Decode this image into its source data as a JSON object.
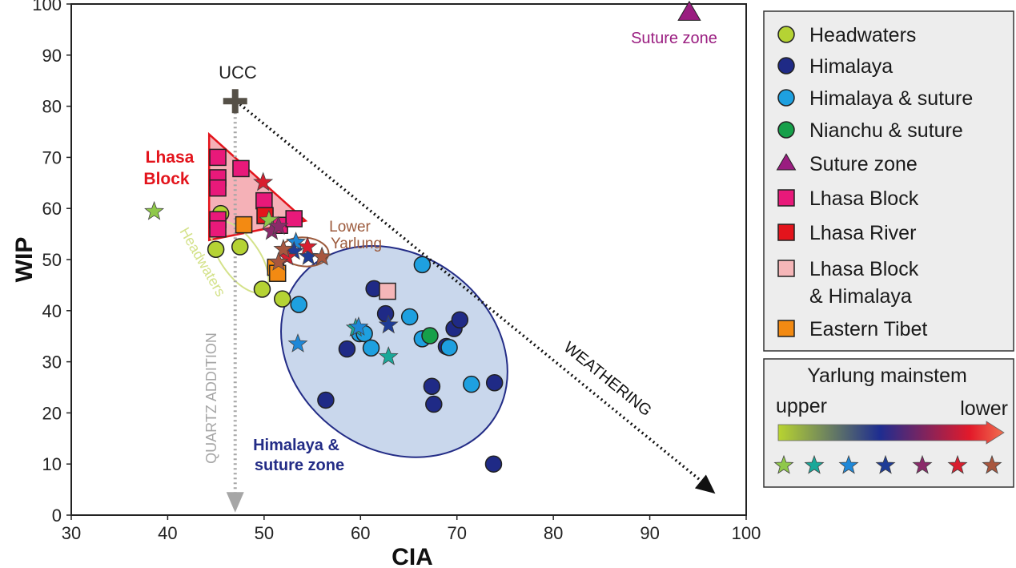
{
  "colors": {
    "headwaters": "#b5d334",
    "himalaya": "#1f2a86",
    "himalaya_suture": "#1ea0e0",
    "nianchu_suture": "#16a04a",
    "suture_zone": "#9a1d80",
    "lhasa_block": "#e8197a",
    "lhasa_river": "#e3141c",
    "lhasa_block_himalaya": "#f5b6b8",
    "eastern_tibet": "#f38a12",
    "himalaya_field_fill": "#c9d7ec",
    "himalaya_field_stroke": "#232c86",
    "lhasa_field_fill": "#f3a3aa",
    "lhasa_field_stroke": "#e3141c",
    "headwaters_field_stroke": "#d4e28a",
    "lower_yarlung_stroke": "#9c5a3c",
    "ucc": "#555047",
    "stars": [
      "#8fc84a",
      "#19a899",
      "#1e88d8",
      "#1e3c96",
      "#8a2a6a",
      "#d81e2e",
      "#a8563e"
    ]
  },
  "chart_data": {
    "type": "scatter",
    "xlabel": "CIA",
    "ylabel": "WIP",
    "xlim": [
      30,
      100
    ],
    "ylim": [
      0,
      100
    ],
    "xticks": [
      "30",
      "40",
      "50",
      "60",
      "70",
      "80",
      "90",
      "100"
    ],
    "yticks": [
      "0",
      "10",
      "20",
      "30",
      "40",
      "50",
      "60",
      "70",
      "80",
      "90",
      "100"
    ],
    "grid": false,
    "legend_position": "right",
    "series": [
      {
        "name": "Headwaters",
        "marker": "circle",
        "color": "#b5d334",
        "points": [
          [
            45,
            52
          ],
          [
            45.5,
            59
          ],
          [
            47.5,
            52.5
          ],
          [
            49.8,
            44.2
          ],
          [
            51.9,
            42.3
          ]
        ]
      },
      {
        "name": "Himalaya",
        "marker": "circle",
        "color": "#1f2a86",
        "points": [
          [
            56.4,
            22.5
          ],
          [
            58.6,
            32.5
          ],
          [
            61.4,
            44.3
          ],
          [
            62.6,
            39.4
          ],
          [
            67.4,
            25.2
          ],
          [
            67.6,
            21.7
          ],
          [
            68.9,
            33
          ],
          [
            69.7,
            36.5
          ],
          [
            70.3,
            38.2
          ],
          [
            73.8,
            10
          ],
          [
            73.9,
            25.9
          ]
        ]
      },
      {
        "name": "Himalaya & suture",
        "marker": "circle",
        "color": "#1ea0e0",
        "points": [
          [
            53.6,
            41.2
          ],
          [
            59.9,
            35.5
          ],
          [
            60.4,
            35.5
          ],
          [
            61.1,
            32.7
          ],
          [
            65.1,
            38.8
          ],
          [
            66.4,
            49
          ],
          [
            66.4,
            34.5
          ],
          [
            69.2,
            32.8
          ],
          [
            71.5,
            25.6
          ]
        ]
      },
      {
        "name": "Nianchu & suture",
        "marker": "circle",
        "color": "#16a04a",
        "points": [
          [
            67.2,
            35.1
          ]
        ]
      },
      {
        "name": "Suture zone",
        "marker": "triangle",
        "color": "#9a1d80",
        "points": [
          [
            94.1,
            98.3
          ]
        ]
      },
      {
        "name": "Lhasa Block",
        "marker": "square",
        "color": "#e8197a",
        "points": [
          [
            45.2,
            70
          ],
          [
            45.2,
            66
          ],
          [
            45.2,
            64
          ],
          [
            45.2,
            57.8
          ],
          [
            45.2,
            56
          ],
          [
            47.6,
            67.8
          ],
          [
            50,
            61.5
          ],
          [
            51.6,
            56.7
          ],
          [
            53.1,
            58
          ]
        ]
      },
      {
        "name": "Lhasa River",
        "marker": "square",
        "color": "#e3141c",
        "points": [
          [
            50.1,
            58.6
          ]
        ]
      },
      {
        "name": "Lhasa Block & Himalaya",
        "marker": "square",
        "color": "#f5b6b8",
        "points": [
          [
            62.8,
            43.8
          ]
        ]
      },
      {
        "name": "Eastern Tibet",
        "marker": "square",
        "color": "#f38a12",
        "points": [
          [
            47.9,
            56.8
          ],
          [
            51.2,
            48.5
          ],
          [
            51.4,
            47.3
          ]
        ]
      },
      {
        "name": "Yarlung mainstem",
        "marker": "star",
        "color": "gradient",
        "points": [
          [
            38.6,
            59.4,
            0
          ],
          [
            50.5,
            57.7,
            0
          ],
          [
            59.5,
            36.6,
            1
          ],
          [
            62.9,
            31,
            1
          ],
          [
            53.5,
            33.5,
            2
          ],
          [
            53.3,
            53.4,
            2
          ],
          [
            59.8,
            36.8,
            2
          ],
          [
            54.6,
            50.6,
            3
          ],
          [
            62.9,
            37.2,
            3
          ],
          [
            53.1,
            51.6,
            3
          ],
          [
            50.8,
            55.5,
            4
          ],
          [
            51.5,
            56.5,
            4
          ],
          [
            49.9,
            65.1,
            5
          ],
          [
            52.4,
            50.5,
            5
          ],
          [
            54.5,
            52.5,
            5
          ],
          [
            52.0,
            52.0,
            6
          ],
          [
            56.0,
            50.5,
            6
          ],
          [
            51.5,
            49.5,
            6
          ]
        ]
      }
    ],
    "reference_point": {
      "name": "UCC",
      "x": 47,
      "y": 81
    },
    "annotations": {
      "lhasa_block": [
        "Lhasa",
        "Block"
      ],
      "headwaters": "Headwaters",
      "lower_yarlung": [
        "Lower",
        "Yarlung"
      ],
      "himalaya_suture": [
        "Himalaya &",
        "suture zone"
      ],
      "suture_zone": "Suture zone",
      "ucc": "UCC",
      "weathering": "WEATHERING",
      "quartz_addition": "QUARTZ ADDITION"
    }
  },
  "legend": {
    "items": [
      {
        "label": "Headwaters",
        "marker": "circle",
        "color": "#b5d334"
      },
      {
        "label": "Himalaya",
        "marker": "circle",
        "color": "#1f2a86"
      },
      {
        "label": "Himalaya & suture",
        "marker": "circle",
        "color": "#1ea0e0"
      },
      {
        "label": "Nianchu & suture",
        "marker": "circle",
        "color": "#16a04a"
      },
      {
        "label": "Suture zone",
        "marker": "triangle",
        "color": "#9a1d80"
      },
      {
        "label": "Lhasa Block",
        "marker": "square",
        "color": "#e8197a"
      },
      {
        "label": "Lhasa River",
        "marker": "square",
        "color": "#e3141c"
      },
      {
        "label": "Lhasa Block",
        "label2": "& Himalaya",
        "marker": "square",
        "color": "#f5b6b8"
      },
      {
        "label": "Eastern Tibet",
        "marker": "square",
        "color": "#f38a12"
      }
    ],
    "gradient": {
      "title": "Yarlung mainstem",
      "left_label": "upper",
      "right_label": "lower",
      "colors": [
        "#b8d430",
        "#1e2d90",
        "#e31a2a",
        "#f07050"
      ]
    }
  }
}
